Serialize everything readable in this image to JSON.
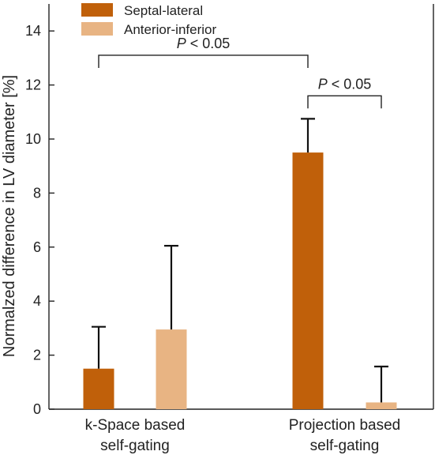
{
  "chart_data": {
    "type": "bar",
    "ylabel": "Normalzed difference in LV diameter [%]",
    "ylim": [
      0,
      15
    ],
    "yticks": [
      0,
      2,
      4,
      6,
      8,
      10,
      12,
      14
    ],
    "categories": [
      [
        "k-Space based",
        "self-gating"
      ],
      [
        "Projection based",
        "self-gating"
      ]
    ],
    "series": [
      {
        "name": "Septal-lateral",
        "color": "#c0600a",
        "values": [
          1.5,
          9.5
        ],
        "errors": [
          1.55,
          1.25
        ]
      },
      {
        "name": "Anterior-inferior",
        "color": "#e8b483",
        "values": [
          2.95,
          0.25
        ],
        "errors": [
          3.1,
          1.33
        ]
      }
    ],
    "legend_position": "top-left",
    "annotations": [
      {
        "italic": "P",
        "text": " < 0.05",
        "from": [
          0,
          0
        ],
        "to": [
          1,
          0
        ],
        "y": 13.1
      },
      {
        "italic": "P",
        "text": " < 0.05",
        "from": [
          1,
          0
        ],
        "to": [
          1,
          1
        ],
        "y": 11.6
      }
    ]
  }
}
